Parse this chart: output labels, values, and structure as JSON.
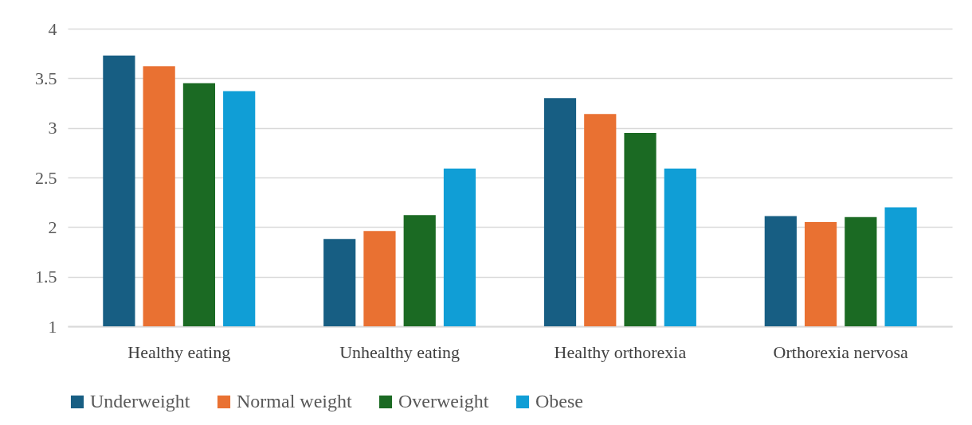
{
  "chart_data": {
    "type": "bar",
    "categories": [
      "Healthy eating",
      "Unhealthy eating",
      "Healthy orthorexia",
      "Orthorexia nervosa"
    ],
    "series": [
      {
        "name": "Underweight",
        "color": "#175e83",
        "values": [
          3.73,
          1.88,
          3.3,
          2.11
        ]
      },
      {
        "name": "Normal weight",
        "color": "#e97132",
        "values": [
          3.62,
          1.96,
          3.14,
          2.05
        ]
      },
      {
        "name": "Overweight",
        "color": "#1b6a23",
        "values": [
          3.45,
          2.12,
          2.95,
          2.1
        ]
      },
      {
        "name": "Obese",
        "color": "#109ed6",
        "values": [
          3.37,
          2.59,
          2.59,
          2.2
        ]
      }
    ],
    "ylim": [
      1,
      4
    ],
    "yticks": [
      1,
      1.5,
      2,
      2.5,
      3,
      3.5,
      4
    ],
    "grid": "y",
    "legend": "bottom"
  }
}
